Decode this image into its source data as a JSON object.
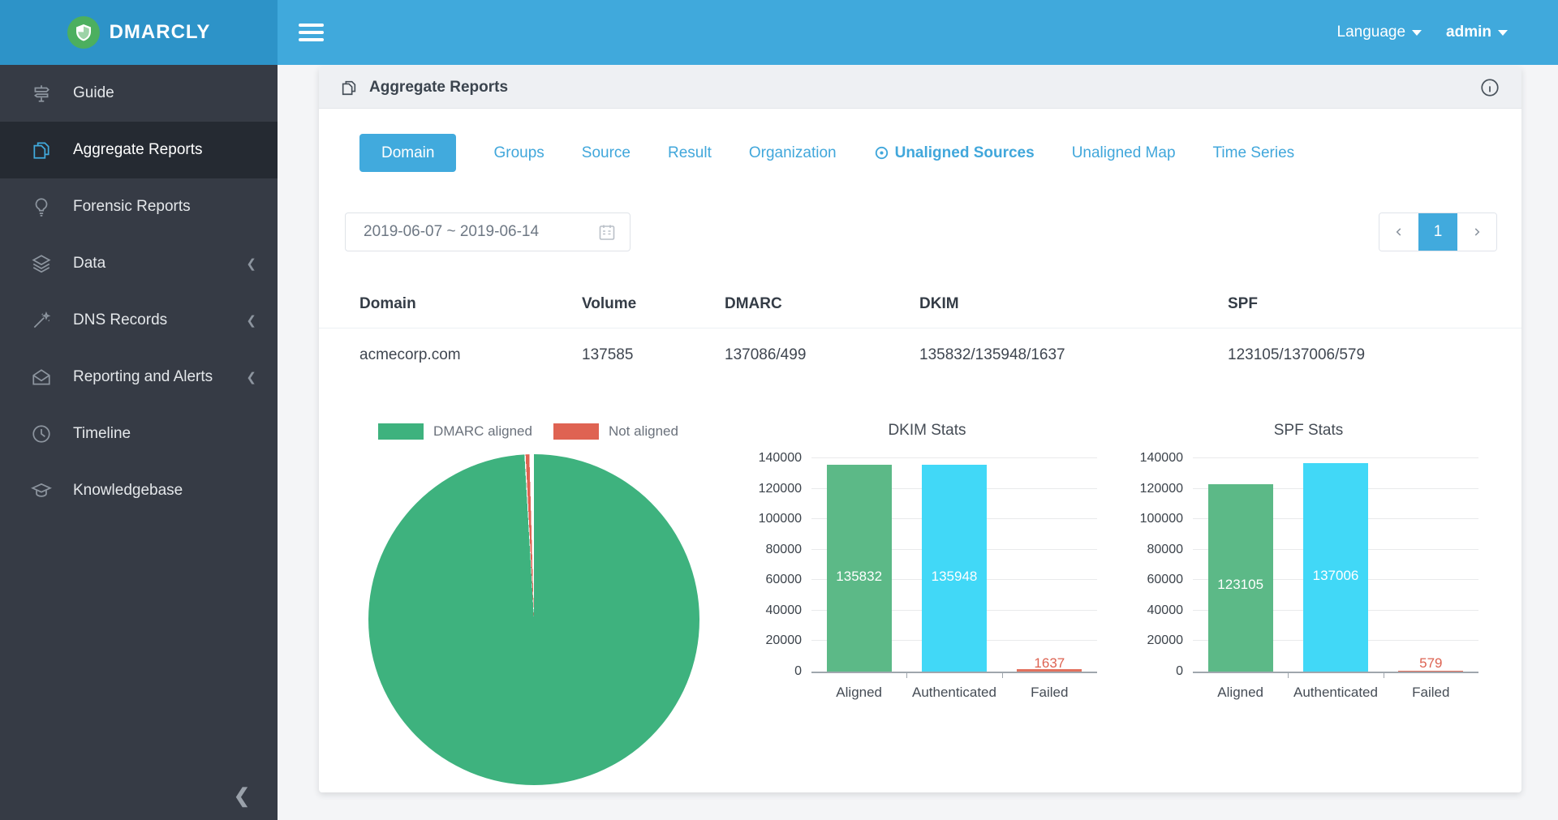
{
  "brand": {
    "name": "DMARCLY"
  },
  "topbar": {
    "language_label": "Language",
    "user_label": "admin"
  },
  "sidebar": {
    "items": [
      {
        "label": "Guide",
        "icon": "signpost-icon",
        "active": false,
        "expandable": false
      },
      {
        "label": "Aggregate Reports",
        "icon": "documents-icon",
        "active": true,
        "expandable": false
      },
      {
        "label": "Forensic Reports",
        "icon": "lightbulb-icon",
        "active": false,
        "expandable": false
      },
      {
        "label": "Data",
        "icon": "layers-icon",
        "active": false,
        "expandable": true
      },
      {
        "label": "DNS Records",
        "icon": "magic-wand-icon",
        "active": false,
        "expandable": true
      },
      {
        "label": "Reporting and Alerts",
        "icon": "open-envelope-icon",
        "active": false,
        "expandable": true
      },
      {
        "label": "Timeline",
        "icon": "clock-icon",
        "active": false,
        "expandable": false
      },
      {
        "label": "Knowledgebase",
        "icon": "graduation-cap-icon",
        "active": false,
        "expandable": false
      }
    ]
  },
  "page": {
    "title": "Aggregate Reports"
  },
  "tabs": [
    {
      "label": "Domain",
      "active": true
    },
    {
      "label": "Groups"
    },
    {
      "label": "Source"
    },
    {
      "label": "Result"
    },
    {
      "label": "Organization"
    },
    {
      "label": "Unaligned Sources",
      "highlighted": true,
      "icon": "bullseye-icon"
    },
    {
      "label": "Unaligned Map"
    },
    {
      "label": "Time Series"
    }
  ],
  "filters": {
    "date_range": "2019-06-07 ~ 2019-06-14"
  },
  "pagination": {
    "current_page": "1"
  },
  "table": {
    "columns": [
      "Domain",
      "Volume",
      "DMARC",
      "DKIM",
      "SPF"
    ],
    "rows": [
      [
        "acmecorp.com",
        "137585",
        "137086/499",
        "135832/135948/1637",
        "123105/137006/579"
      ]
    ]
  },
  "chart_data": [
    {
      "name": "dmarc-alignment-pie",
      "type": "pie",
      "labels": [
        "DMARC aligned",
        "Not aligned"
      ],
      "values": [
        137086,
        499
      ],
      "colors": [
        "#3eb27e",
        "#df6352"
      ],
      "legend_position": "top"
    },
    {
      "name": "dkim-stats",
      "type": "bar",
      "title": "DKIM Stats",
      "categories": [
        "Aligned",
        "Authenticated",
        "Failed"
      ],
      "values": [
        135832,
        135948,
        1637
      ],
      "colors": [
        "#5cb987",
        "#41d8f7",
        "#e2705d"
      ],
      "value_label_colors": [
        "#ffffff",
        "#ffffff",
        "#dd6352"
      ],
      "ylim": [
        0,
        140000
      ],
      "ytick_step": 20000,
      "grid": true
    },
    {
      "name": "spf-stats",
      "type": "bar",
      "title": "SPF Stats",
      "categories": [
        "Aligned",
        "Authenticated",
        "Failed"
      ],
      "values": [
        123105,
        137006,
        579
      ],
      "colors": [
        "#5cb987",
        "#41d8f7",
        "#e2705d"
      ],
      "value_label_colors": [
        "#ffffff",
        "#ffffff",
        "#dd6352"
      ],
      "ylim": [
        0,
        140000
      ],
      "ytick_step": 20000,
      "grid": true
    }
  ]
}
